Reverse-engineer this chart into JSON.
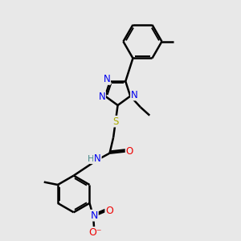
{
  "bg_color": "#e8e8e8",
  "N_color": "#0000ee",
  "O_color": "#ee0000",
  "S_color": "#aaaa00",
  "C_color": "#000000",
  "H_color": "#4a8a8a",
  "bond_color": "#000000",
  "bond_lw": 1.8,
  "font_size": 8.5,
  "xlim": [
    0,
    10
  ],
  "ylim": [
    0,
    13
  ]
}
